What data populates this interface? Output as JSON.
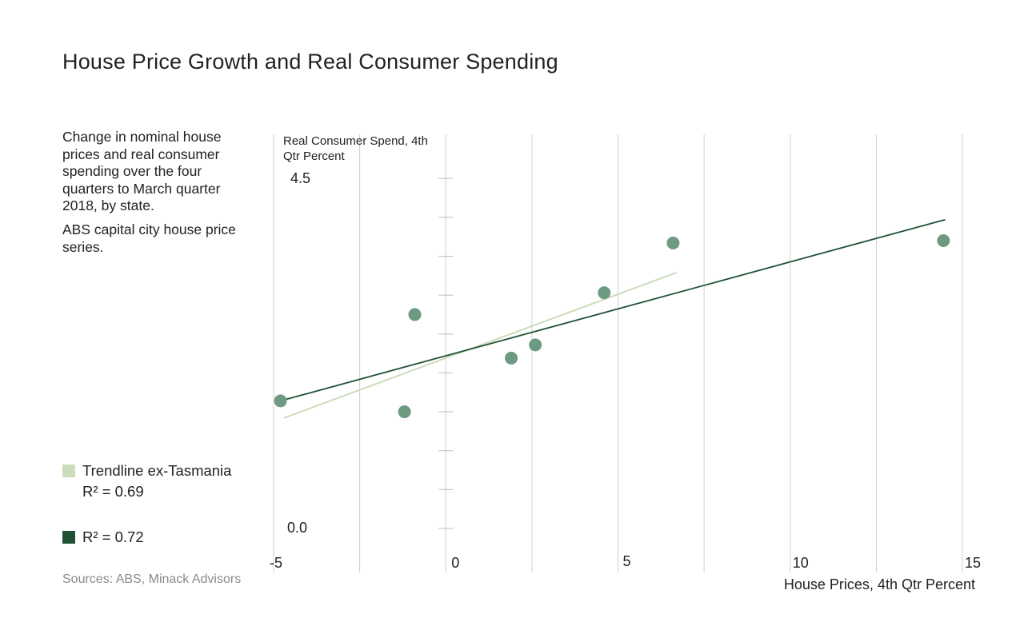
{
  "header": {
    "title": "House Price Growth and Real Consumer Spending"
  },
  "description": {
    "p1": "Change in nominal house prices and real consumer spending over the four quarters to March quarter 2018, by state.",
    "p2": "ABS capital city house price series."
  },
  "legend": {
    "trend_ex_tas_label": "Trendline ex-Tasmania",
    "trend_ex_tas_r2": "R² = 0.69",
    "trend_all_r2": "R² = 0.72"
  },
  "source": "Sources: ABS, Minack Advisors",
  "colors": {
    "point": "#6f9a82",
    "trend_all": "#1f5235",
    "trend_ex_tas": "#ccdcbc",
    "grid": "#cfcfcf",
    "tick": "#bdbdbd"
  },
  "chart_data": {
    "type": "scatter",
    "xlabel": "House Prices, 4th Qtr Percent",
    "ylabel": "Real Consumer Spend, 4th Qtr Percent",
    "xlim": [
      -5,
      15
    ],
    "ylim": [
      0.0,
      4.5
    ],
    "x_ticks": [
      -5,
      0,
      5,
      10,
      15
    ],
    "x_tick_labels": [
      "-5",
      "0",
      "5",
      "10",
      "15"
    ],
    "y_tick_labels": [
      "4.5",
      "0.0"
    ],
    "x_grid": [
      -5,
      -2.5,
      0,
      2.5,
      5,
      7.5,
      10,
      12.5,
      15
    ],
    "y_minor_ticks": [
      0,
      0.5,
      1,
      1.5,
      2,
      2.5,
      3,
      3.5,
      4,
      4.5
    ],
    "points": [
      {
        "x": -4.8,
        "y": 1.64
      },
      {
        "x": -1.2,
        "y": 1.5
      },
      {
        "x": -0.9,
        "y": 2.75
      },
      {
        "x": 1.9,
        "y": 2.19
      },
      {
        "x": 2.6,
        "y": 2.36
      },
      {
        "x": 4.6,
        "y": 3.03
      },
      {
        "x": 6.6,
        "y": 3.67
      },
      {
        "x": 14.45,
        "y": 3.7
      }
    ],
    "trendlines": [
      {
        "name": "Trendline ex-Tasmania",
        "r2": 0.69,
        "x": [
          -4.7,
          6.7
        ],
        "y": [
          1.42,
          3.29
        ]
      },
      {
        "name": "",
        "r2": 0.72,
        "x": [
          -4.8,
          14.5
        ],
        "y": [
          1.64,
          3.97
        ]
      }
    ]
  }
}
